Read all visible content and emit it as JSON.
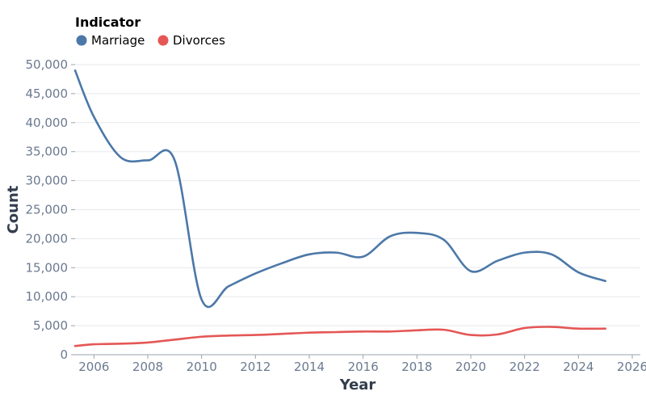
{
  "chart_data": {
    "type": "line",
    "xlabel": "Year",
    "ylabel": "Count",
    "xlim": [
      2005.3,
      2026.3
    ],
    "ylim": [
      0,
      50000
    ],
    "x_ticks": [
      2006,
      2008,
      2010,
      2012,
      2014,
      2016,
      2018,
      2020,
      2022,
      2024,
      2026
    ],
    "y_ticks": [
      0,
      5000,
      10000,
      15000,
      20000,
      25000,
      30000,
      35000,
      40000,
      45000,
      50000
    ],
    "y_tick_labels": [
      "0",
      "5,000",
      "10,000",
      "15,000",
      "20,000",
      "25,000",
      "30,000",
      "35,000",
      "40,000",
      "45,000",
      "50,000"
    ],
    "grid": "horizontal",
    "legend": {
      "title": "Indicator",
      "placement": "top-left",
      "entries": [
        {
          "label": "Marriage",
          "color": "#4c78a8"
        },
        {
          "label": "Divorces",
          "color": "#e45756"
        }
      ]
    },
    "x": [
      2005.3,
      2006,
      2007,
      2008,
      2009,
      2010,
      2011,
      2012,
      2013,
      2014,
      2015,
      2016,
      2017,
      2018,
      2019,
      2020,
      2021,
      2022,
      2023,
      2024,
      2025
    ],
    "series": [
      {
        "name": "Marriage",
        "color": "#4c78a8",
        "values": [
          49000,
          41000,
          34000,
          33500,
          33500,
          9500,
          11800,
          14000,
          15800,
          17300,
          17600,
          16900,
          20400,
          21000,
          19800,
          14400,
          16200,
          17600,
          17300,
          14200,
          12700
        ]
      },
      {
        "name": "Divorces",
        "color": "#e45756",
        "values": [
          1500,
          1800,
          1900,
          2100,
          2600,
          3100,
          3300,
          3400,
          3600,
          3800,
          3900,
          4000,
          4000,
          4200,
          4300,
          3400,
          3500,
          4600,
          4800,
          4500,
          4500
        ]
      }
    ]
  }
}
